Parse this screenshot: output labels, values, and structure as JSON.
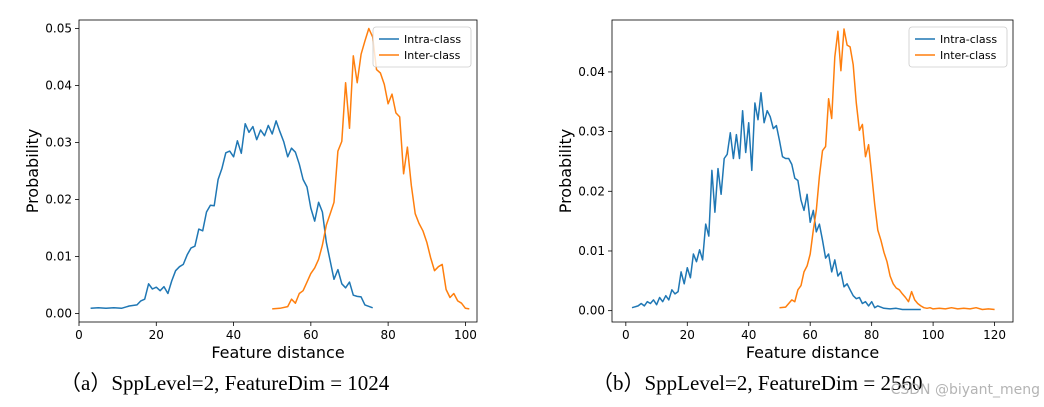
{
  "chart_data": [
    {
      "type": "line",
      "xlabel": "Feature distance",
      "ylabel": "Probability",
      "xlim": [
        0,
        103
      ],
      "ylim": [
        -0.0015,
        0.0515
      ],
      "xticks": [
        0,
        20,
        40,
        60,
        80,
        100
      ],
      "yticks": [
        0.0,
        0.01,
        0.02,
        0.03,
        0.04,
        0.05
      ],
      "ytick_labels": [
        "0.00",
        "0.01",
        "0.02",
        "0.03",
        "0.04",
        "0.05"
      ],
      "legend_position": "top-right",
      "caption": "（a）SppLevel=2, FeatureDim = 1024",
      "series": [
        {
          "name": "Intra-class",
          "color": "#1f77b4",
          "x": [
            3,
            5,
            7,
            9,
            11,
            13,
            15,
            16,
            17,
            18,
            19,
            20,
            21,
            22,
            23,
            24,
            25,
            26,
            27,
            28,
            29,
            30,
            31,
            32,
            33,
            34,
            35,
            36,
            37,
            38,
            39,
            40,
            41,
            42,
            43,
            44,
            45,
            46,
            47,
            48,
            49,
            50,
            51,
            52,
            53,
            54,
            55,
            56,
            57,
            58,
            59,
            60,
            61,
            62,
            63,
            64,
            65,
            66,
            67,
            68,
            69,
            70,
            71,
            72,
            73,
            74,
            76
          ],
          "y": [
            0.0009,
            0.001,
            0.0009,
            0.001,
            0.0009,
            0.0013,
            0.0015,
            0.0022,
            0.0025,
            0.0052,
            0.0043,
            0.0046,
            0.004,
            0.0047,
            0.0035,
            0.0057,
            0.0075,
            0.0082,
            0.0086,
            0.0103,
            0.0115,
            0.0118,
            0.0148,
            0.0145,
            0.0178,
            0.019,
            0.0189,
            0.0235,
            0.0255,
            0.0282,
            0.0285,
            0.0275,
            0.0303,
            0.0281,
            0.0333,
            0.0318,
            0.0328,
            0.0305,
            0.0322,
            0.0312,
            0.033,
            0.0315,
            0.0338,
            0.0319,
            0.0301,
            0.0275,
            0.029,
            0.0283,
            0.0262,
            0.0235,
            0.0222,
            0.0185,
            0.0162,
            0.0195,
            0.0178,
            0.0125,
            0.0092,
            0.006,
            0.0077,
            0.0052,
            0.0045,
            0.0055,
            0.0032,
            0.003,
            0.0029,
            0.0015,
            0.001
          ]
        },
        {
          "name": "Inter-class",
          "color": "#ff7f0e",
          "x": [
            50,
            52,
            54,
            55,
            56,
            57,
            58,
            59,
            60,
            61,
            62,
            63,
            64,
            65,
            66,
            67,
            68,
            69,
            70,
            71,
            72,
            73,
            74,
            75,
            76,
            77,
            78,
            79,
            80,
            81,
            82,
            83,
            84,
            85,
            86,
            87,
            88,
            89,
            90,
            91,
            92,
            93,
            94,
            95,
            96,
            97,
            98,
            99,
            100,
            101
          ],
          "y": [
            0.0008,
            0.0009,
            0.0012,
            0.0025,
            0.0018,
            0.0035,
            0.004,
            0.0055,
            0.007,
            0.008,
            0.0095,
            0.012,
            0.0155,
            0.0175,
            0.0195,
            0.0285,
            0.0302,
            0.0405,
            0.0325,
            0.0452,
            0.0405,
            0.0455,
            0.0478,
            0.05,
            0.0485,
            0.0428,
            0.0422,
            0.0402,
            0.0368,
            0.0385,
            0.0352,
            0.0345,
            0.0245,
            0.0292,
            0.0225,
            0.0175,
            0.0158,
            0.0145,
            0.0125,
            0.0098,
            0.0075,
            0.0082,
            0.0086,
            0.0042,
            0.0028,
            0.0035,
            0.0022,
            0.0018,
            0.0009,
            0.0008
          ]
        }
      ]
    },
    {
      "type": "line",
      "xlabel": "Feature distance",
      "ylabel": "Probability",
      "xlim": [
        -4.5,
        126
      ],
      "ylim": [
        -0.0019,
        0.0487
      ],
      "xticks": [
        0,
        20,
        40,
        60,
        80,
        100,
        120
      ],
      "yticks": [
        0.0,
        0.01,
        0.02,
        0.03,
        0.04
      ],
      "ytick_labels": [
        "0.00",
        "0.01",
        "0.02",
        "0.03",
        "0.04"
      ],
      "legend_position": "top-right",
      "caption": "（b）SppLevel=2, FeatureDim = 2560",
      "series": [
        {
          "name": "Intra-class",
          "color": "#1f77b4",
          "x": [
            2,
            4,
            5,
            6,
            7,
            8,
            9,
            10,
            11,
            12,
            13,
            14,
            15,
            16,
            17,
            18,
            19,
            20,
            21,
            22,
            23,
            24,
            25,
            26,
            27,
            28,
            29,
            30,
            31,
            32,
            33,
            34,
            35,
            36,
            37,
            38,
            39,
            40,
            41,
            42,
            43,
            44,
            45,
            46,
            47,
            48,
            49,
            50,
            51,
            52,
            53,
            54,
            55,
            56,
            57,
            58,
            59,
            60,
            61,
            62,
            63,
            64,
            65,
            66,
            67,
            68,
            69,
            70,
            71,
            72,
            73,
            74,
            75,
            76,
            77,
            78,
            79,
            80,
            81,
            82,
            84,
            86,
            88,
            90,
            93,
            96
          ],
          "y": [
            0.0005,
            0.0008,
            0.0012,
            0.0008,
            0.0015,
            0.0012,
            0.0018,
            0.001,
            0.0022,
            0.0015,
            0.0025,
            0.0018,
            0.0035,
            0.0028,
            0.0032,
            0.0065,
            0.0045,
            0.0072,
            0.0055,
            0.0095,
            0.0082,
            0.0102,
            0.0085,
            0.0145,
            0.0125,
            0.0235,
            0.0165,
            0.0238,
            0.0195,
            0.0255,
            0.0262,
            0.0298,
            0.0255,
            0.0295,
            0.0255,
            0.0335,
            0.0265,
            0.0315,
            0.0235,
            0.0348,
            0.032,
            0.0365,
            0.0315,
            0.0335,
            0.0325,
            0.0305,
            0.031,
            0.0285,
            0.0258,
            0.0255,
            0.0255,
            0.0245,
            0.0222,
            0.0218,
            0.0185,
            0.0168,
            0.0195,
            0.0148,
            0.0168,
            0.0132,
            0.0145,
            0.0118,
            0.0088,
            0.0095,
            0.0065,
            0.0085,
            0.0058,
            0.0065,
            0.004,
            0.0045,
            0.0035,
            0.0025,
            0.002,
            0.0022,
            0.0012,
            0.0015,
            0.0008,
            0.0015,
            0.0005,
            0.0008,
            0.0004,
            0.0003,
            0.0004,
            0.0002,
            0.0002,
            0.0002
          ]
        },
        {
          "name": "Inter-class",
          "color": "#ff7f0e",
          "x": [
            50,
            52,
            53,
            54,
            55,
            56,
            57,
            58,
            59,
            60,
            61,
            62,
            63,
            64,
            65,
            66,
            67,
            68,
            69,
            70,
            71,
            72,
            73,
            74,
            75,
            76,
            77,
            78,
            79,
            80,
            81,
            82,
            83,
            84,
            85,
            86,
            87,
            88,
            89,
            90,
            91,
            92,
            93,
            94,
            95,
            96,
            97,
            98,
            99,
            100,
            102,
            104,
            106,
            108,
            110,
            112,
            114,
            116,
            118,
            120
          ],
          "y": [
            0.0005,
            0.0006,
            0.0012,
            0.0018,
            0.0015,
            0.0035,
            0.0042,
            0.0065,
            0.0075,
            0.0095,
            0.0135,
            0.0168,
            0.0225,
            0.0268,
            0.0275,
            0.0355,
            0.0322,
            0.0425,
            0.0468,
            0.0402,
            0.0472,
            0.0445,
            0.0442,
            0.0412,
            0.0348,
            0.0302,
            0.0312,
            0.0258,
            0.0278,
            0.0228,
            0.0178,
            0.0135,
            0.0118,
            0.0098,
            0.0082,
            0.0058,
            0.0045,
            0.0038,
            0.0035,
            0.0028,
            0.0022,
            0.0015,
            0.0032,
            0.0018,
            0.0012,
            0.0008,
            0.0005,
            0.0004,
            0.0005,
            0.0003,
            0.0004,
            0.0003,
            0.0005,
            0.0003,
            0.0004,
            0.0003,
            0.0005,
            0.0002,
            0.0003,
            0.0002
          ]
        }
      ]
    }
  ],
  "watermark": "CSDN @biyant_meng"
}
